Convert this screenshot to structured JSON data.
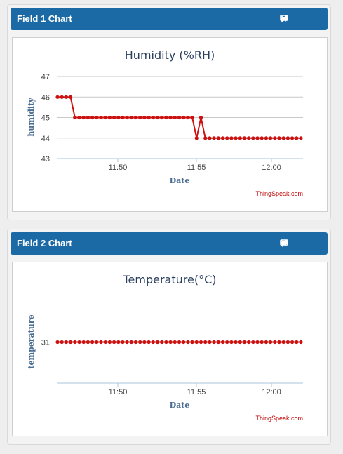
{
  "colors": {
    "header": "#1b6aa5",
    "series": "#cc1111",
    "grid": "#c8c8c8",
    "axis": "#a9c4de"
  },
  "panel_icons": [
    "close-icon",
    "edit-icon",
    "comment-icon",
    "minimize-icon"
  ],
  "panels": [
    {
      "header_title": "Field 1 Chart",
      "chart_data": {
        "type": "line",
        "title": "Humidity (%RH)",
        "xlabel": "Date",
        "ylabel": "humidity",
        "credit": "ThingSpeak.com",
        "x_ticks": [
          "11:50",
          "11:55",
          "12:00"
        ],
        "y_ticks": [
          47,
          46,
          45,
          44,
          43
        ],
        "ylim": [
          43,
          47
        ],
        "grid": true,
        "series": [
          {
            "values": [
              46,
              46,
              46,
              46,
              45,
              45,
              45,
              45,
              45,
              45,
              45,
              45,
              45,
              45,
              45,
              45,
              45,
              45,
              45,
              45,
              45,
              45,
              45,
              45,
              45,
              45,
              45,
              45,
              45,
              45,
              45,
              45,
              44,
              45,
              44,
              44,
              44,
              44,
              44,
              44,
              44,
              44,
              44,
              44,
              44,
              44,
              44,
              44,
              44,
              44,
              44,
              44,
              44,
              44,
              44,
              44,
              44
            ]
          }
        ]
      }
    },
    {
      "header_title": "Field 2 Chart",
      "chart_data": {
        "type": "line",
        "title": "Temperature(°C)",
        "xlabel": "Date",
        "ylabel": "temperature",
        "credit": "ThingSpeak.com",
        "x_ticks": [
          "11:50",
          "11:55",
          "12:00"
        ],
        "y_ticks": [
          31
        ],
        "ylim": [
          30,
          32
        ],
        "grid": false,
        "series": [
          {
            "values": [
              31,
              31,
              31,
              31,
              31,
              31,
              31,
              31,
              31,
              31,
              31,
              31,
              31,
              31,
              31,
              31,
              31,
              31,
              31,
              31,
              31,
              31,
              31,
              31,
              31,
              31,
              31,
              31,
              31,
              31,
              31,
              31,
              31,
              31,
              31,
              31,
              31,
              31,
              31,
              31,
              31,
              31,
              31,
              31,
              31,
              31,
              31,
              31,
              31,
              31,
              31,
              31,
              31,
              31,
              31,
              31,
              31
            ]
          }
        ]
      }
    }
  ]
}
